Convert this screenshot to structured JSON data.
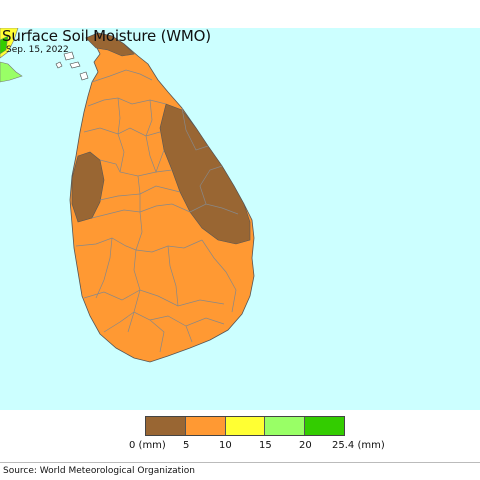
{
  "header": {
    "title": "Surface Soil Moisture (WMO)",
    "date": "Sep. 15, 2022"
  },
  "map": {
    "ocean_color": "#ccffff",
    "land_color": "#ff9933",
    "dry_color": "#996633",
    "border_color": "#888888"
  },
  "legend": {
    "colors": [
      "#996633",
      "#ff9933",
      "#ffff33",
      "#99ff66",
      "#33cc00"
    ],
    "ticks": [
      "0 (mm)",
      "5",
      "10",
      "15",
      "20",
      "25.4 (mm)"
    ]
  },
  "footer": {
    "source": "Source: World Meteorological Organization"
  }
}
